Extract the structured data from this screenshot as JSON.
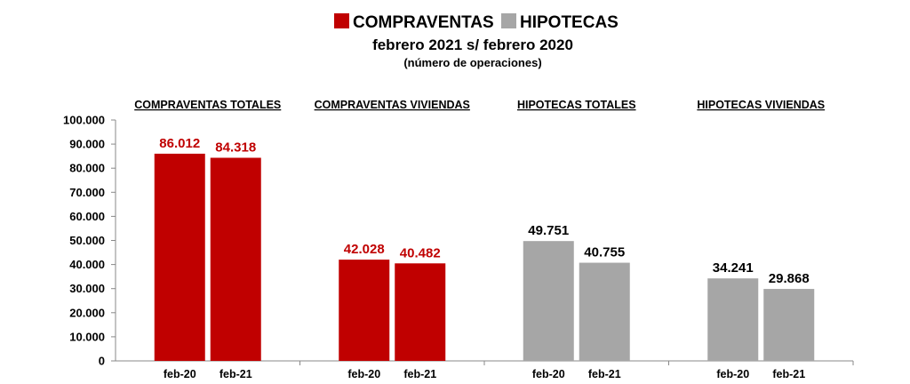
{
  "chart_data": {
    "type": "bar",
    "title": "febrero 2021 s/ febrero 2020",
    "subtitle": "(número de operaciones)",
    "legend": {
      "position": "top",
      "items": [
        {
          "label": "COMPRAVENTAS",
          "color": "#C00000"
        },
        {
          "label": "HIPOTECAS",
          "color": "#A6A6A6"
        }
      ]
    },
    "ylim": [
      0,
      100000
    ],
    "y_ticks": [
      "0",
      "10.000",
      "20.000",
      "30.000",
      "40.000",
      "50.000",
      "60.000",
      "70.000",
      "80.000",
      "90.000",
      "100.000"
    ],
    "grid": false,
    "groups": [
      {
        "label": "COMPRAVENTAS TOTALES",
        "color": "#C00000",
        "label_color": "#C00000",
        "bars": [
          {
            "x": "feb-20",
            "value": 86012,
            "label": "86.012"
          },
          {
            "x": "feb-21",
            "value": 84318,
            "label": "84.318"
          }
        ]
      },
      {
        "label": "COMPRAVENTAS VIVIENDAS",
        "color": "#C00000",
        "label_color": "#C00000",
        "bars": [
          {
            "x": "feb-20",
            "value": 42028,
            "label": "42.028"
          },
          {
            "x": "feb-21",
            "value": 40482,
            "label": "40.482"
          }
        ]
      },
      {
        "label": "HIPOTECAS TOTALES",
        "color": "#A6A6A6",
        "label_color": "#000000",
        "bars": [
          {
            "x": "feb-20",
            "value": 49751,
            "label": "49.751"
          },
          {
            "x": "feb-21",
            "value": 40755,
            "label": "40.755"
          }
        ]
      },
      {
        "label": "HIPOTECAS VIVIENDAS",
        "color": "#A6A6A6",
        "label_color": "#000000",
        "bars": [
          {
            "x": "feb-20",
            "value": 34241,
            "label": "34.241"
          },
          {
            "x": "feb-21",
            "value": 29868,
            "label": "29.868"
          }
        ]
      }
    ]
  }
}
